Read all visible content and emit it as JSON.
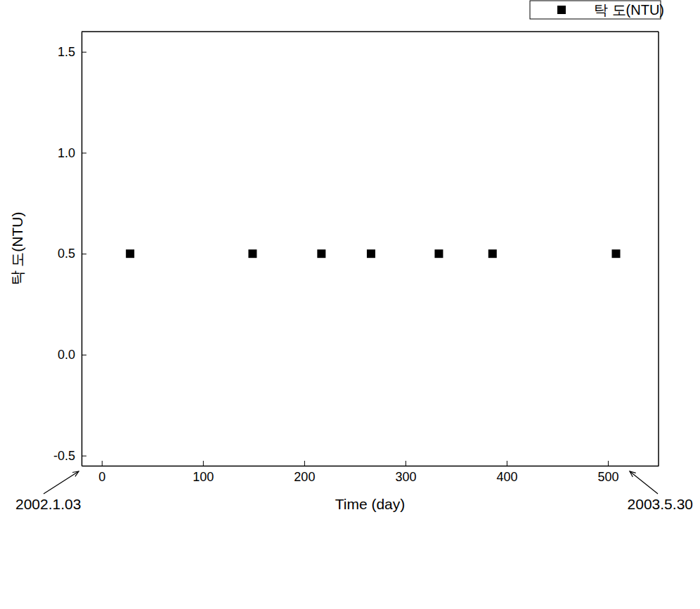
{
  "chart_data": {
    "type": "scatter",
    "x_label": "Time (day)",
    "y_label": "탁 도(NTU)",
    "x": [
      28,
      149,
      217,
      266,
      333,
      386,
      508
    ],
    "series": [
      {
        "name": "탁 도(NTU)",
        "color": "#000000",
        "marker": "square",
        "values": [
          0.5,
          0.5,
          0.5,
          0.5,
          0.5,
          0.5,
          0.5
        ]
      }
    ],
    "xlim": [
      -20,
      550
    ],
    "xticks": [
      0,
      100,
      200,
      300,
      400,
      500
    ],
    "ylim": [
      -0.55,
      1.6
    ],
    "yticks": [
      -0.5,
      {
        "value": 0,
        "label": "0.0"
      },
      0.5,
      {
        "value": 1,
        "label": "1.0"
      },
      1.5
    ],
    "legend": "top-right",
    "annotations": [
      "2002.1.03",
      "2003.5.30"
    ]
  }
}
